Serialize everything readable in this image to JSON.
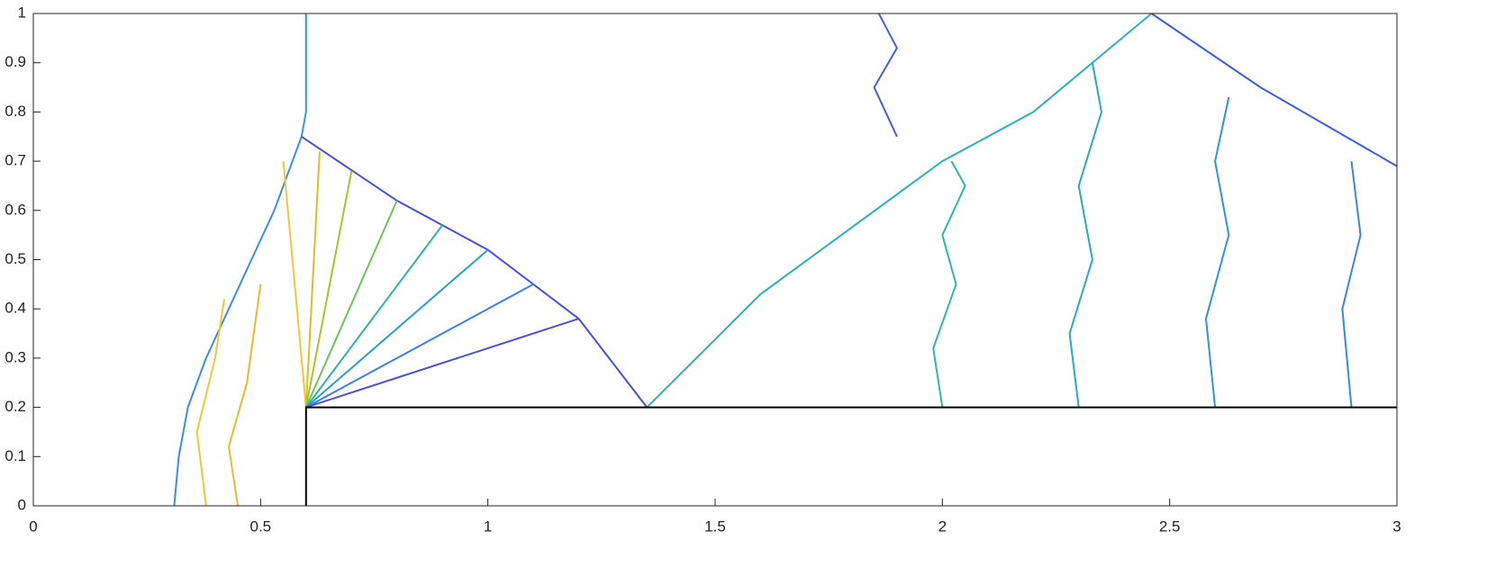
{
  "chart_data": {
    "type": "contour",
    "xlim": [
      0,
      3
    ],
    "ylim": [
      0,
      1
    ],
    "xticks": [
      0,
      0.5,
      1,
      1.5,
      2,
      2.5,
      3
    ],
    "yticks": [
      0,
      0.1,
      0.2,
      0.3,
      0.4,
      0.5,
      0.6,
      0.7,
      0.8,
      0.9,
      1
    ],
    "series": [
      {
        "color": "#3a8ee6",
        "x": [
          0.31,
          0.32,
          0.34,
          0.38,
          0.43,
          0.48,
          0.53,
          0.57,
          0.59
        ],
        "y": [
          0,
          0.1,
          0.2,
          0.3,
          0.4,
          0.5,
          0.6,
          0.7,
          0.75
        ]
      },
      {
        "color": "#2f9adf",
        "x": [
          0.59,
          0.6,
          0.6
        ],
        "y": [
          0.75,
          0.8,
          1
        ]
      },
      {
        "color": "#4a4fd9",
        "x": [
          0.59,
          0.8,
          1.0,
          1.2,
          1.35
        ],
        "y": [
          0.75,
          0.62,
          0.52,
          0.38,
          0.2
        ]
      },
      {
        "color": "#2bb2b9",
        "x": [
          1.35,
          1.6,
          2.0,
          2.2,
          2.46
        ],
        "y": [
          0.2,
          0.43,
          0.7,
          0.8,
          1
        ]
      },
      {
        "color": "#3a60e0",
        "x": [
          2.46,
          2.7,
          3.0
        ],
        "y": [
          1,
          0.85,
          0.69
        ]
      },
      {
        "color": "#f3c63b",
        "x": [
          0.6,
          0.55
        ],
        "y": [
          0.2,
          0.7
        ]
      },
      {
        "color": "#d9c024",
        "x": [
          0.6,
          0.63
        ],
        "y": [
          0.2,
          0.72
        ]
      },
      {
        "color": "#a8c42c",
        "x": [
          0.6,
          0.7
        ],
        "y": [
          0.2,
          0.68
        ]
      },
      {
        "color": "#6cc35a",
        "x": [
          0.6,
          0.8
        ],
        "y": [
          0.2,
          0.62
        ]
      },
      {
        "color": "#2fb59a",
        "x": [
          0.6,
          0.9
        ],
        "y": [
          0.2,
          0.57
        ]
      },
      {
        "color": "#27a0c8",
        "x": [
          0.6,
          1.0
        ],
        "y": [
          0.2,
          0.52
        ]
      },
      {
        "color": "#3b7fe8",
        "x": [
          0.6,
          1.1
        ],
        "y": [
          0.2,
          0.45
        ]
      },
      {
        "color": "#4a4fd9",
        "x": [
          0.6,
          1.2
        ],
        "y": [
          0.2,
          0.38
        ]
      },
      {
        "color": "#f0b830",
        "x": [
          0.45,
          0.43,
          0.47,
          0.5
        ],
        "y": [
          0,
          0.12,
          0.25,
          0.45
        ]
      },
      {
        "color": "#eec83a",
        "x": [
          0.38,
          0.36,
          0.4,
          0.42
        ],
        "y": [
          0,
          0.15,
          0.3,
          0.42
        ]
      },
      {
        "color": "#2db8a8",
        "x": [
          2.0,
          1.98,
          2.03,
          2.0,
          2.05,
          2.02
        ],
        "y": [
          0.2,
          0.32,
          0.45,
          0.55,
          0.65,
          0.7
        ]
      },
      {
        "color": "#2aa9c2",
        "x": [
          2.3,
          2.28,
          2.33,
          2.3,
          2.35,
          2.33
        ],
        "y": [
          0.2,
          0.35,
          0.5,
          0.65,
          0.8,
          0.9
        ]
      },
      {
        "color": "#2e95d8",
        "x": [
          2.6,
          2.58,
          2.63,
          2.6,
          2.63
        ],
        "y": [
          0.2,
          0.38,
          0.55,
          0.7,
          0.83
        ]
      },
      {
        "color": "#3a86e2",
        "x": [
          2.9,
          2.88,
          2.92,
          2.9
        ],
        "y": [
          0.2,
          0.4,
          0.55,
          0.7
        ]
      },
      {
        "color": "#4b5ddf",
        "x": [
          1.9,
          1.85,
          1.9,
          1.86
        ],
        "y": [
          0.75,
          0.85,
          0.93,
          1
        ]
      },
      {
        "color": "#000000",
        "x": [
          0.6,
          0.6,
          3.0
        ],
        "y": [
          0,
          0.2,
          0.2
        ]
      }
    ]
  }
}
